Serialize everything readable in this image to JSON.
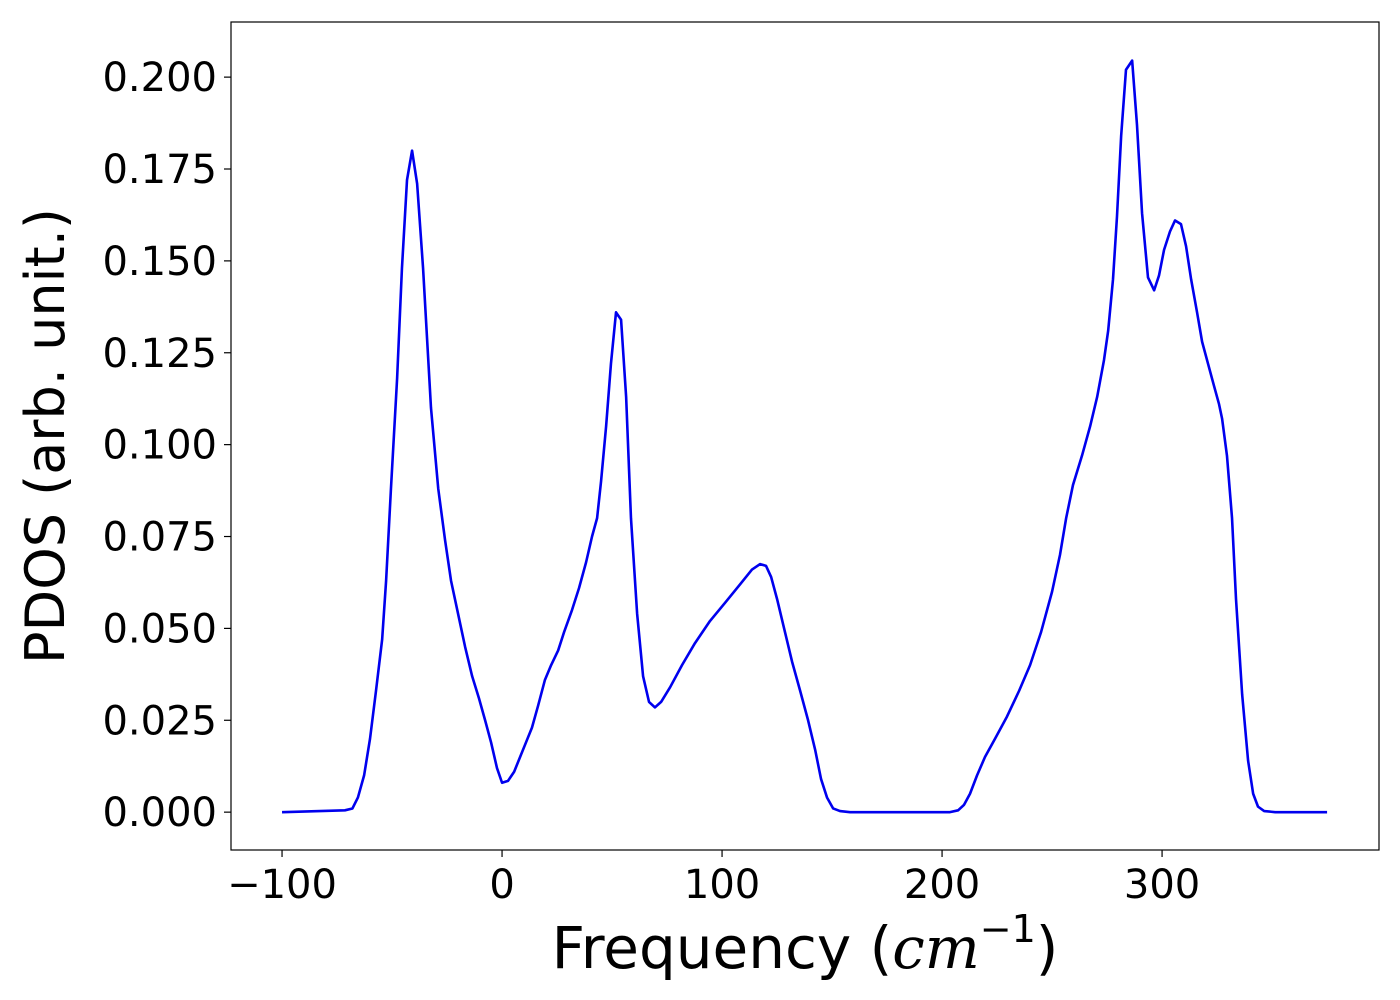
{
  "chart_data": {
    "type": "line",
    "x_label": [
      "Frequency (",
      "cm",
      "−1",
      ")"
    ],
    "y_label": "PDOS (arb. unit.)",
    "color": "#0000ee",
    "x": [
      -100,
      -71.4,
      -68,
      -65.5,
      -62.7,
      -60,
      -57.3,
      -54.5,
      -52.7,
      -50.5,
      -47.7,
      -45.5,
      -43.2,
      -40.9,
      -38.6,
      -35.9,
      -32.3,
      -29,
      -25.9,
      -23.2,
      -20,
      -16.8,
      -13.6,
      -10.5,
      -7.7,
      -5,
      -2.3,
      0,
      2.7,
      5.5,
      8.2,
      10.9,
      13.6,
      16.4,
      19.5,
      22.3,
      25.5,
      28.2,
      31.8,
      35,
      38.2,
      40.9,
      43.2,
      45,
      47.3,
      49.5,
      51.8,
      54.1,
      56.4,
      58.6,
      61.4,
      64.1,
      66.8,
      69.5,
      72.3,
      76.4,
      81.8,
      87.7,
      94.5,
      101.4,
      108.2,
      113.6,
      117.3,
      120,
      122.3,
      125,
      128.2,
      131.8,
      135.5,
      139.1,
      142.3,
      145,
      147.7,
      150.5,
      153.6,
      158.2,
      203.6,
      207.3,
      210,
      212.7,
      215.9,
      219.5,
      224.1,
      229.5,
      235,
      240,
      245,
      250,
      253.6,
      256.4,
      259.5,
      263.6,
      267.3,
      270.5,
      273.6,
      275.5,
      277.7,
      279.5,
      281.4,
      283.6,
      286.4,
      288.6,
      290.9,
      293.6,
      296.4,
      298.6,
      300.9,
      303.6,
      305.9,
      308.6,
      310.9,
      313.2,
      315.9,
      318.2,
      320.9,
      323.6,
      325.9,
      327.3,
      329.5,
      331.8,
      333.6,
      336.4,
      339.1,
      341.4,
      343.6,
      346.4,
      351.4,
      375
    ],
    "values": [
      0,
      0.0005,
      0.001,
      0.004,
      0.01,
      0.02,
      0.033,
      0.047,
      0.063,
      0.088,
      0.118,
      0.148,
      0.172,
      0.18,
      0.171,
      0.148,
      0.11,
      0.088,
      0.074,
      0.063,
      0.054,
      0.045,
      0.037,
      0.031,
      0.025,
      0.019,
      0.012,
      0.008,
      0.0085,
      0.011,
      0.015,
      0.019,
      0.023,
      0.029,
      0.036,
      0.04,
      0.044,
      0.049,
      0.055,
      0.061,
      0.068,
      0.075,
      0.08,
      0.09,
      0.105,
      0.122,
      0.136,
      0.134,
      0.113,
      0.08,
      0.054,
      0.037,
      0.03,
      0.0285,
      0.03,
      0.034,
      0.04,
      0.046,
      0.052,
      0.057,
      0.062,
      0.066,
      0.0675,
      0.067,
      0.064,
      0.058,
      0.05,
      0.041,
      0.033,
      0.025,
      0.017,
      0.009,
      0.004,
      0.001,
      0.0003,
      0,
      0,
      0.0005,
      0.002,
      0.005,
      0.01,
      0.015,
      0.02,
      0.026,
      0.033,
      0.04,
      0.049,
      0.06,
      0.07,
      0.08,
      0.089,
      0.097,
      0.105,
      0.113,
      0.123,
      0.131,
      0.145,
      0.162,
      0.184,
      0.202,
      0.2045,
      0.187,
      0.163,
      0.1455,
      0.142,
      0.146,
      0.153,
      0.158,
      0.161,
      0.16,
      0.154,
      0.145,
      0.136,
      0.128,
      0.122,
      0.116,
      0.111,
      0.107,
      0.097,
      0.08,
      0.058,
      0.032,
      0.014,
      0.005,
      0.0015,
      0.0003,
      0,
      0
    ],
    "xlim": [
      -123.2,
      398.6
    ],
    "xticks": [
      {
        "value": -100,
        "label": "−100"
      },
      0,
      100,
      200,
      300
    ],
    "ylim": [
      -0.0103,
      0.215
    ],
    "yticks": [
      {
        "value": 0,
        "label": "0.000"
      },
      {
        "value": 0.025,
        "label": "0.025"
      },
      {
        "value": 0.05,
        "label": "0.050"
      },
      {
        "value": 0.075,
        "label": "0.075"
      },
      {
        "value": 0.1,
        "label": "0.100"
      },
      {
        "value": 0.125,
        "label": "0.125"
      },
      {
        "value": 0.15,
        "label": "0.150"
      },
      {
        "value": 0.175,
        "label": "0.175"
      },
      {
        "value": 0.2,
        "label": "0.200"
      }
    ],
    "grid": false
  }
}
